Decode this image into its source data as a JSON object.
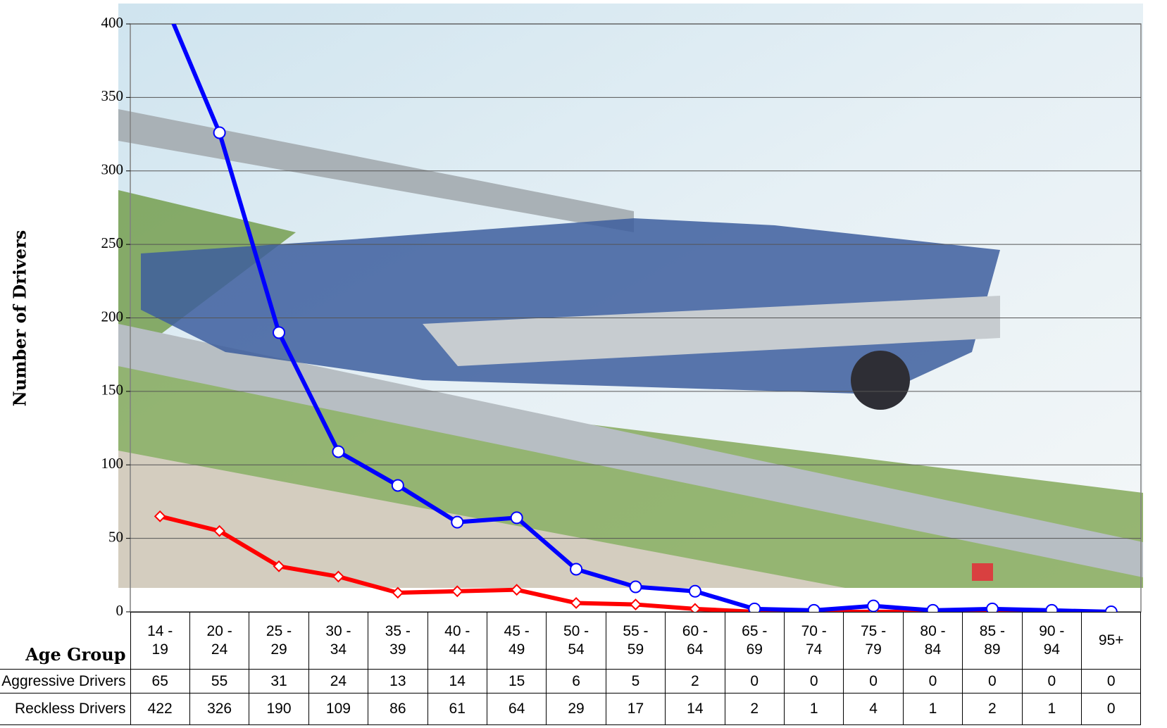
{
  "chart_data": {
    "type": "line",
    "y_label": "Number of Drivers",
    "x_label": "Age Group",
    "categories": [
      "14 - 19",
      "20 - 24",
      "25 - 29",
      "30 - 34",
      "35 - 39",
      "40 - 44",
      "45 - 49",
      "50 - 54",
      "55 - 59",
      "60 - 64",
      "65 - 69",
      "70 - 74",
      "75 - 79",
      "80 - 84",
      "85 - 89",
      "90 - 94",
      "95+"
    ],
    "series": [
      {
        "name": "Aggressive Drivers",
        "color": "#ff0000",
        "marker": "diamond",
        "values": [
          65,
          55,
          31,
          24,
          13,
          14,
          15,
          6,
          5,
          2,
          0,
          0,
          0,
          0,
          0,
          0,
          0
        ]
      },
      {
        "name": "Reckless Drivers",
        "color": "#0000ff",
        "marker": "circle",
        "values": [
          422,
          326,
          190,
          109,
          86,
          61,
          64,
          29,
          17,
          14,
          2,
          1,
          4,
          1,
          2,
          1,
          0
        ]
      }
    ],
    "ylim": [
      0,
      400
    ],
    "yticks": [
      0,
      50,
      100,
      150,
      200,
      250,
      300,
      350,
      400
    ],
    "grid": true
  }
}
